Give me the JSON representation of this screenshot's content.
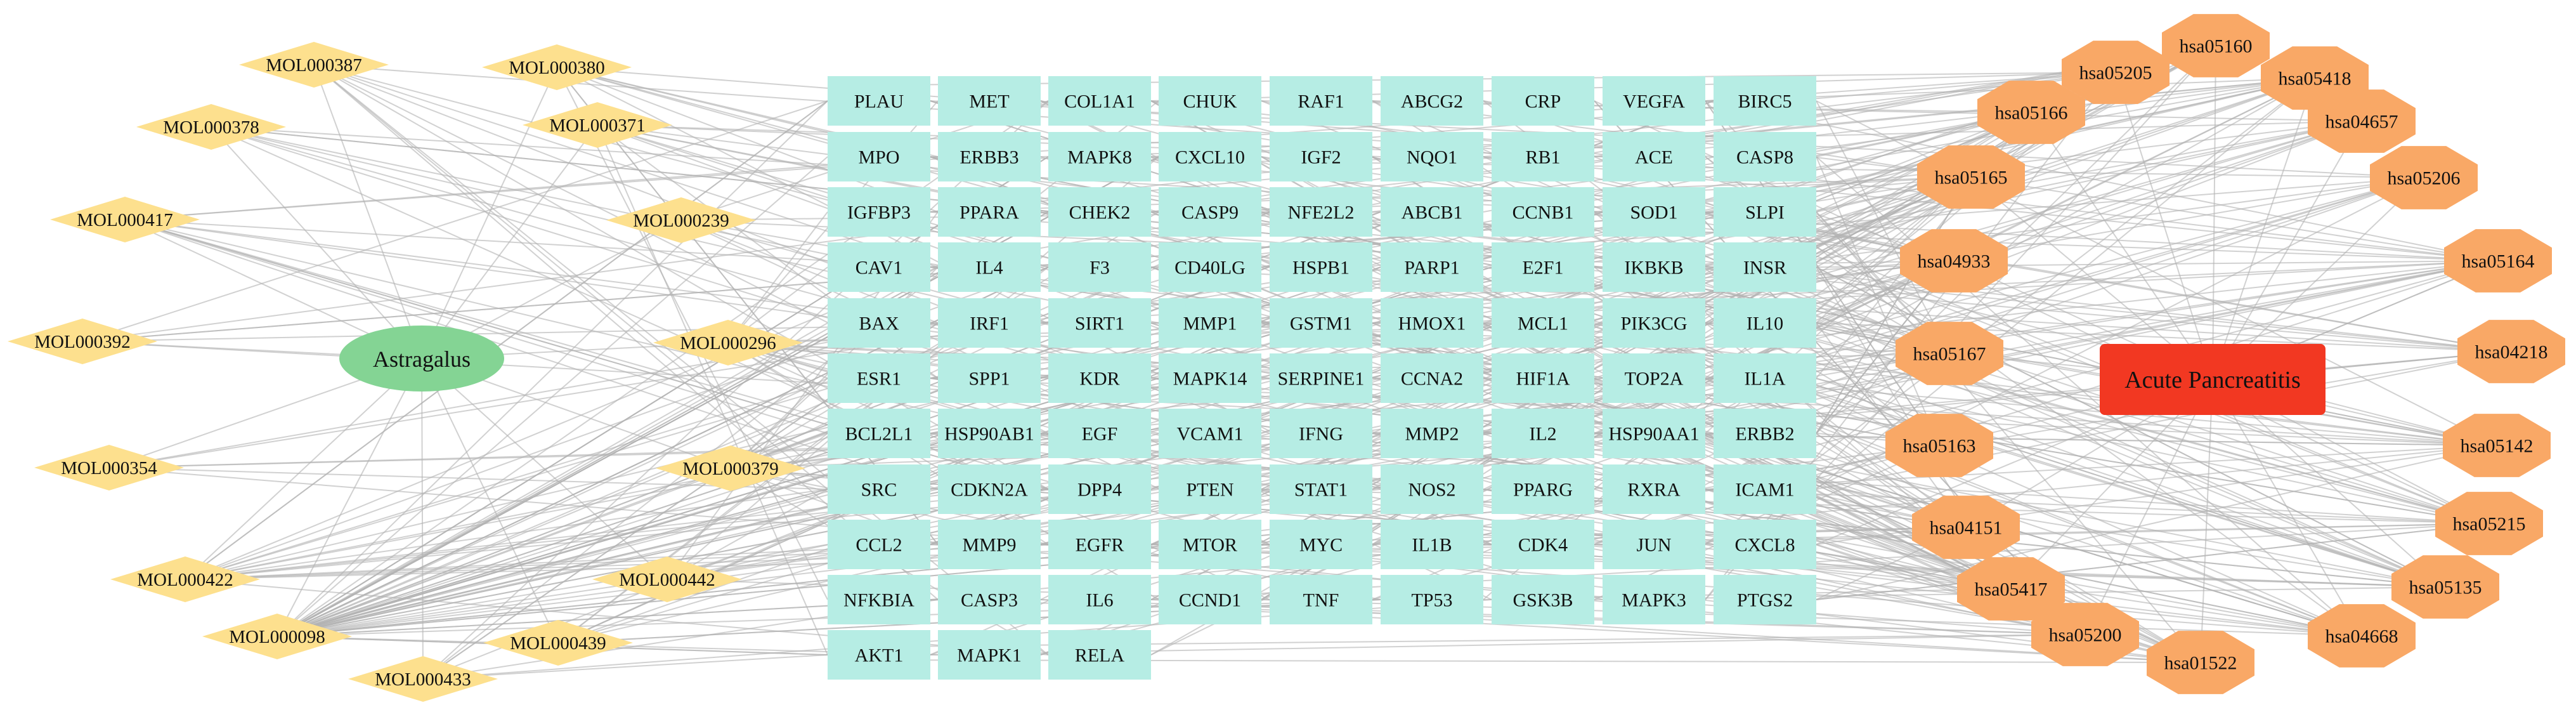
{
  "herb": {
    "label": "Astragalus"
  },
  "disease": {
    "label": "Acute Pancreatitis"
  },
  "compounds": [
    "MOL000387",
    "MOL000380",
    "MOL000378",
    "MOL000371",
    "MOL000417",
    "MOL000239",
    "MOL000392",
    "MOL000296",
    "MOL000354",
    "MOL000379",
    "MOL000422",
    "MOL000442",
    "MOL000098",
    "MOL000439",
    "MOL000433"
  ],
  "targets": [
    [
      "PLAU",
      "MET",
      "COL1A1",
      "CHUK",
      "RAF1",
      "ABCG2",
      "CRP",
      "VEGFA",
      "BIRC5"
    ],
    [
      "MPO",
      "ERBB3",
      "MAPK8",
      "CXCL10",
      "IGF2",
      "NQO1",
      "RB1",
      "ACE",
      "CASP8"
    ],
    [
      "IGFBP3",
      "PPARA",
      "CHEK2",
      "CASP9",
      "NFE2L2",
      "ABCB1",
      "CCNB1",
      "SOD1",
      "SLPI"
    ],
    [
      "CAV1",
      "IL4",
      "F3",
      "CD40LG",
      "HSPB1",
      "PARP1",
      "E2F1",
      "IKBKB",
      "INSR"
    ],
    [
      "BAX",
      "IRF1",
      "SIRT1",
      "MMP1",
      "GSTM1",
      "HMOX1",
      "MCL1",
      "PIK3CG",
      "IL10"
    ],
    [
      "ESR1",
      "SPP1",
      "KDR",
      "MAPK14",
      "SERPINE1",
      "CCNA2",
      "HIF1A",
      "TOP2A",
      "IL1A"
    ],
    [
      "BCL2L1",
      "HSP90AB1",
      "EGF",
      "VCAM1",
      "IFNG",
      "MMP2",
      "IL2",
      "HSP90AA1",
      "ERBB2"
    ],
    [
      "SRC",
      "CDKN2A",
      "DPP4",
      "PTEN",
      "STAT1",
      "NOS2",
      "PPARG",
      "RXRA",
      "ICAM1"
    ],
    [
      "CCL2",
      "MMP9",
      "EGFR",
      "MTOR",
      "MYC",
      "IL1B",
      "CDK4",
      "JUN",
      "CXCL8"
    ],
    [
      "NFKBIA",
      "CASP3",
      "IL6",
      "CCND1",
      "TNF",
      "TP53",
      "GSK3B",
      "MAPK3",
      "PTGS2"
    ],
    [
      "AKT1",
      "MAPK1",
      "RELA"
    ]
  ],
  "pathways": [
    "hsa05160",
    "hsa05205",
    "hsa05418",
    "hsa05166",
    "hsa04657",
    "hsa05165",
    "hsa05206",
    "hsa04933",
    "hsa05164",
    "hsa05167",
    "hsa04218",
    "hsa05163",
    "hsa05142",
    "hsa04151",
    "hsa05215",
    "hsa05417",
    "hsa05135",
    "hsa05200",
    "hsa04668",
    "hsa01522"
  ],
  "colors": {
    "herb": "#84d494",
    "compound": "#fde08e",
    "target": "#b6ede4",
    "pathway": "#f9a866",
    "disease": "#f23822",
    "edge": "#b3b3b3"
  }
}
